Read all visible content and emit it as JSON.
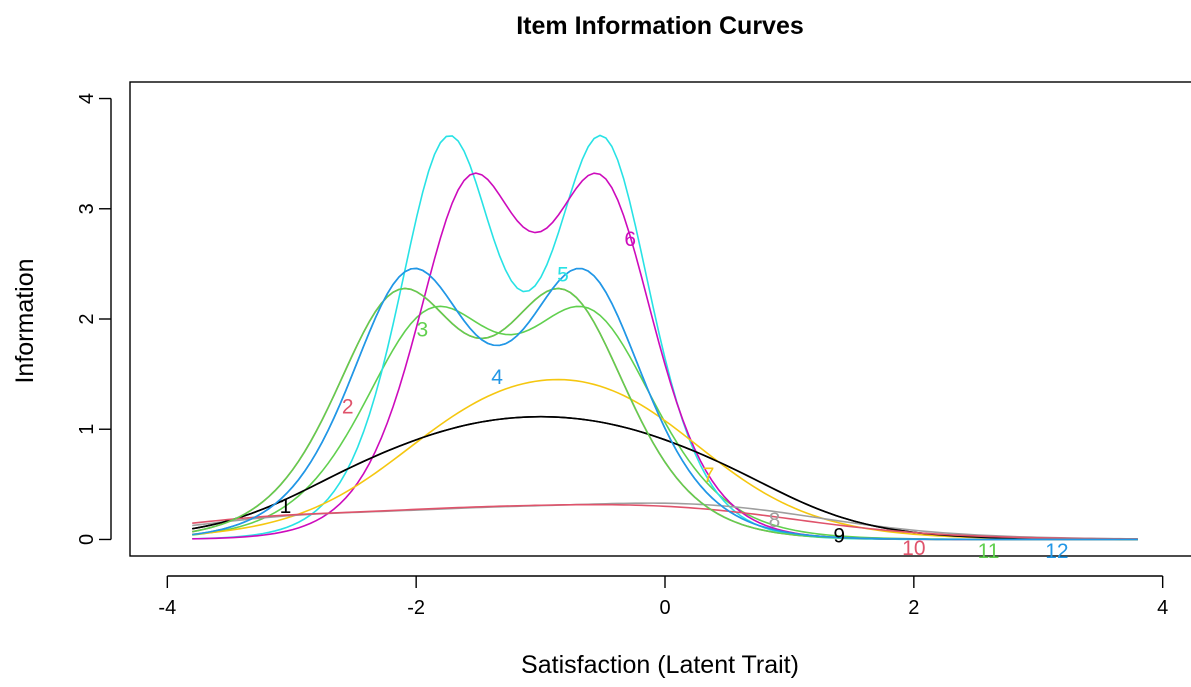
{
  "chart_data": {
    "type": "line",
    "title": "Item Information Curves",
    "xlabel": "Satisfaction (Latent Trait)",
    "ylabel": "Information",
    "xlim": [
      -4.3,
      4.3
    ],
    "ylim": [
      -0.15,
      4.15
    ],
    "x_ticks": [
      -4,
      -2,
      0,
      2,
      4
    ],
    "x_tick_labels": [
      "-4",
      "-2",
      "0",
      "2",
      "4"
    ],
    "y_ticks": [
      0,
      1,
      2,
      3,
      4
    ],
    "y_tick_labels": [
      "0",
      "1",
      "2",
      "3",
      "4"
    ],
    "grid": false,
    "theta_range": [
      -3.8,
      3.8
    ],
    "series": [
      {
        "label": "1",
        "color": "#000000",
        "label_pos": [
          -3.05,
          0.3
        ],
        "components": [
          {
            "a": 2.2,
            "b": -2.55,
            "scale": 0.25
          },
          {
            "a": 2.2,
            "b": -1.9,
            "scale": 0.25
          },
          {
            "a": 2.2,
            "b": -1.45,
            "scale": 0.25
          },
          {
            "a": 2.2,
            "b": -1.0,
            "scale": 0.25
          },
          {
            "a": 2.2,
            "b": -0.55,
            "scale": 0.25
          },
          {
            "a": 2.2,
            "b": -0.1,
            "scale": 0.25
          },
          {
            "a": 2.2,
            "b": 0.55,
            "scale": 0.25
          }
        ]
      },
      {
        "label": "2",
        "color": "#DF536B",
        "label_pos": [
          -2.55,
          1.2
        ],
        "components": [
          {
            "a": 2.9,
            "b": -2.15,
            "scale": 1
          },
          {
            "a": 2.9,
            "b": -0.8,
            "scale": 1
          }
        ]
      },
      {
        "label": "3",
        "color": "#61D04F",
        "label_pos": [
          -1.95,
          1.9
        ],
        "components": [
          {
            "a": 2.75,
            "b": -1.9,
            "scale": 1
          },
          {
            "a": 2.75,
            "b": -0.6,
            "scale": 1
          }
        ]
      },
      {
        "label": "4",
        "color": "#2297E6",
        "label_pos": [
          -1.35,
          1.47
        ],
        "components": [
          {
            "a": 3.05,
            "b": -2.05,
            "scale": 1
          },
          {
            "a": 3.05,
            "b": -0.65,
            "scale": 1
          }
        ]
      },
      {
        "label": "5",
        "color": "#28E2E5",
        "label_pos": [
          -0.82,
          2.4
        ],
        "components": [
          {
            "a": 3.76,
            "b": -1.75,
            "scale": 1
          },
          {
            "a": 3.76,
            "b": -0.5,
            "scale": 1
          }
        ]
      },
      {
        "label": "6",
        "color": "#CD0BBC",
        "label_pos": [
          -0.28,
          2.72
        ],
        "components": [
          {
            "a": 3.48,
            "b": -1.58,
            "scale": 1
          },
          {
            "a": 3.48,
            "b": -0.5,
            "scale": 1
          }
        ]
      },
      {
        "label": "7",
        "color": "#F5C710",
        "label_pos": [
          0.35,
          0.58
        ],
        "components": [
          {
            "a": 2.0,
            "b": -1.75,
            "scale": 0.5
          },
          {
            "a": 2.0,
            "b": -1.15,
            "scale": 0.5
          },
          {
            "a": 2.0,
            "b": -0.6,
            "scale": 0.5
          },
          {
            "a": 2.0,
            "b": -0.05,
            "scale": 0.5
          }
        ]
      },
      {
        "label": "8",
        "color": "#9E9E9E",
        "label_pos": [
          0.88,
          0.17
        ],
        "components": [
          {
            "a": 1.6,
            "b": -3.0,
            "scale": 0.25
          },
          {
            "a": 1.6,
            "b": -1.5,
            "scale": 0.25
          },
          {
            "a": 1.6,
            "b": -0.2,
            "scale": 0.25
          },
          {
            "a": 1.6,
            "b": 0.7,
            "scale": 0.25
          }
        ]
      },
      {
        "label": "9",
        "color": "#000000",
        "label_pos": [
          1.4,
          0.03
        ],
        "components": [
          {
            "a": 2.2,
            "b": -2.55,
            "scale": 0.25
          },
          {
            "a": 2.2,
            "b": -1.9,
            "scale": 0.25
          },
          {
            "a": 2.2,
            "b": -1.45,
            "scale": 0.25
          },
          {
            "a": 2.2,
            "b": -1.0,
            "scale": 0.25
          },
          {
            "a": 2.2,
            "b": -0.55,
            "scale": 0.25
          },
          {
            "a": 2.2,
            "b": -0.1,
            "scale": 0.25
          },
          {
            "a": 2.2,
            "b": 0.55,
            "scale": 0.25
          }
        ]
      },
      {
        "label": "10",
        "color": "#DF536B",
        "label_pos": [
          2.0,
          -0.08
        ],
        "components": [
          {
            "a": 1.55,
            "b": -3.2,
            "scale": 0.25
          },
          {
            "a": 1.55,
            "b": -1.7,
            "scale": 0.25
          },
          {
            "a": 1.55,
            "b": -0.5,
            "scale": 0.25
          },
          {
            "a": 1.55,
            "b": 0.5,
            "scale": 0.25
          }
        ]
      },
      {
        "label": "11",
        "color": "#61D04F",
        "label_pos": [
          2.6,
          -0.11
        ],
        "components": [
          {
            "a": 2.9,
            "b": -2.15,
            "scale": 1
          },
          {
            "a": 2.9,
            "b": -0.8,
            "scale": 1
          }
        ]
      },
      {
        "label": "12",
        "color": "#2297E6",
        "label_pos": [
          3.15,
          -0.11
        ],
        "components": [
          {
            "a": 3.05,
            "b": -2.05,
            "scale": 1
          },
          {
            "a": 3.05,
            "b": -0.65,
            "scale": 1
          }
        ]
      }
    ]
  }
}
